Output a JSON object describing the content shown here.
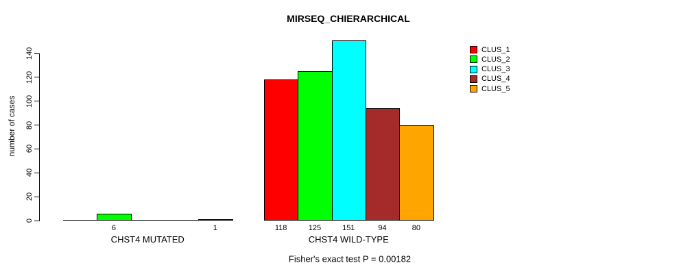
{
  "page": {
    "background": "#FFFFFF",
    "text_color": "#000000"
  },
  "chart_data": {
    "type": "bar",
    "title": "MIRSEQ_CHIERARCHICAL",
    "ylabel": "number of cases",
    "xlabel": "",
    "ylim": [
      0,
      140
    ],
    "yticks": [
      0,
      20,
      40,
      60,
      80,
      100,
      120,
      140
    ],
    "grid": false,
    "legend": {
      "position": "top-right",
      "entries": [
        {
          "label": "CLUS_1",
          "color": "#FF0000"
        },
        {
          "label": "CLUS_2",
          "color": "#00FF00"
        },
        {
          "label": "CLUS_3",
          "color": "#00FFFF"
        },
        {
          "label": "CLUS_4",
          "color": "#A52A2A"
        },
        {
          "label": "CLUS_5",
          "color": "#FFA500"
        }
      ]
    },
    "series_colors": [
      "#FF0000",
      "#00FF00",
      "#00FFFF",
      "#A52A2A",
      "#FFA500"
    ],
    "groups": [
      {
        "label": "CHST4 MUTATED",
        "values": [
          0,
          6,
          0,
          0,
          1
        ],
        "bar_labels": [
          "",
          "6",
          "",
          "",
          "1"
        ]
      },
      {
        "label": "CHST4 WILD-TYPE",
        "values": [
          118,
          125,
          151,
          94,
          80
        ],
        "bar_labels": [
          "118",
          "125",
          "151",
          "94",
          "80"
        ]
      }
    ],
    "annotation": "Fisher's exact test P = 0.00182"
  }
}
